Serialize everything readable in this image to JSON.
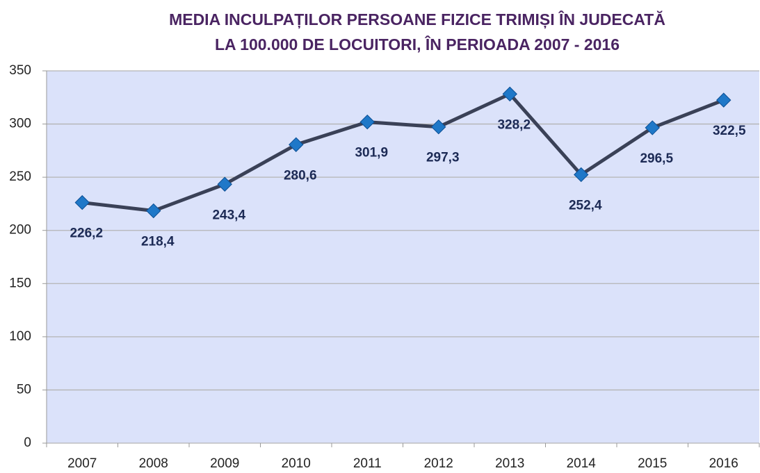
{
  "chart_data": {
    "type": "line",
    "title": [
      "MEDIA INCULPAȚILOR PERSOANE FIZICE TRIMIȘI ÎN JUDECATĂ",
      "LA 100.000 DE LOCUITORI, ÎN PERIOADA 2007 - 2016"
    ],
    "categories": [
      "2007",
      "2008",
      "2009",
      "2010",
      "2011",
      "2012",
      "2013",
      "2014",
      "2015",
      "2016"
    ],
    "values": [
      226.2,
      218.4,
      243.4,
      280.6,
      301.9,
      297.3,
      328.2,
      252.4,
      296.5,
      322.5
    ],
    "value_labels": [
      "226,2",
      "218,4",
      "243,4",
      "280,6",
      "301,9",
      "297,3",
      "328,2",
      "252,4",
      "296,5",
      "322,5"
    ],
    "color": "#3a4157",
    "marker_color": "#1f78c8",
    "ylim": [
      0,
      350
    ],
    "yticks": [
      0,
      50,
      100,
      150,
      200,
      250,
      300,
      350
    ],
    "grid": true
  }
}
